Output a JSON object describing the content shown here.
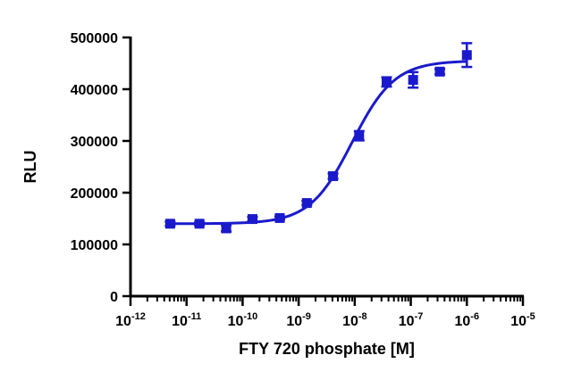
{
  "chart_data": {
    "type": "scatter",
    "title": "",
    "xlabel": "FTY 720 phosphate [M]",
    "ylabel": "RLU",
    "xscale": "log",
    "xlim": [
      1e-12,
      1e-05
    ],
    "ylim": [
      0,
      500000
    ],
    "x_tick_labels": [
      {
        "base": "10",
        "exp": "-12",
        "value": 1e-12
      },
      {
        "base": "10",
        "exp": "-11",
        "value": 1e-11
      },
      {
        "base": "10",
        "exp": "-10",
        "value": 1e-10
      },
      {
        "base": "10",
        "exp": "-9",
        "value": 1e-09
      },
      {
        "base": "10",
        "exp": "-8",
        "value": 1e-08
      },
      {
        "base": "10",
        "exp": "-7",
        "value": 1e-07
      },
      {
        "base": "10",
        "exp": "-6",
        "value": 1e-06
      },
      {
        "base": "10",
        "exp": "-5",
        "value": 1e-05
      }
    ],
    "y_tick_labels": [
      "0",
      "100000",
      "200000",
      "300000",
      "400000",
      "500000"
    ],
    "y_tick_values": [
      0,
      100000,
      200000,
      300000,
      400000,
      500000
    ],
    "grid": false,
    "legend": "none",
    "color": "#1a1acc",
    "series": [
      {
        "points": [
          {
            "x": 5.1e-12,
            "y": 140000,
            "err": 4000
          },
          {
            "x": 1.7e-11,
            "y": 140000,
            "err": 3000
          },
          {
            "x": 5.1e-11,
            "y": 131000,
            "err": 6000
          },
          {
            "x": 1.5e-10,
            "y": 149000,
            "err": 4000
          },
          {
            "x": 4.6e-10,
            "y": 151000,
            "err": 3000
          },
          {
            "x": 1.4e-09,
            "y": 180000,
            "err": 4000
          },
          {
            "x": 4.1e-09,
            "y": 232000,
            "err": 5000
          },
          {
            "x": 1.2e-08,
            "y": 310000,
            "err": 9000
          },
          {
            "x": 3.7e-08,
            "y": 414000,
            "err": 9000
          },
          {
            "x": 1.1e-07,
            "y": 418000,
            "err": 15000
          },
          {
            "x": 3.3e-07,
            "y": 434000,
            "err": 5000
          },
          {
            "x": 1e-06,
            "y": 466000,
            "err": 23000
          }
        ],
        "fit": {
          "model": "four-parameter logistic",
          "bottom": 140000,
          "top": 455000,
          "ec50": 9e-09,
          "hill": 1.15
        }
      }
    ]
  }
}
